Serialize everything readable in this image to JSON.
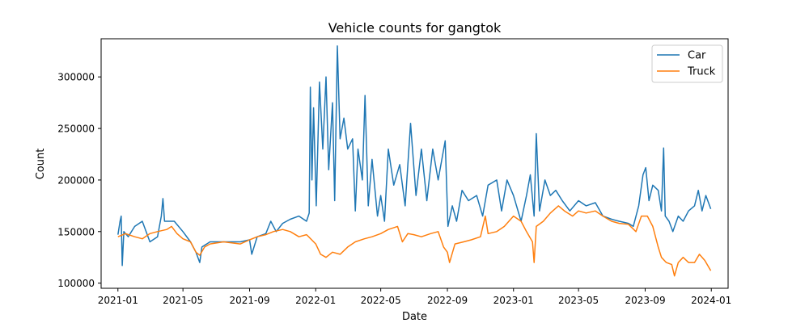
{
  "chart_data": {
    "type": "line",
    "title": "Vehicle counts for gangtok",
    "xlabel": "Date",
    "ylabel": "Count",
    "x_ticks": [
      "2021-01",
      "2021-05",
      "2021-09",
      "2022-01",
      "2022-05",
      "2022-09",
      "2023-01",
      "2023-05",
      "2023-09",
      "2024-01"
    ],
    "y_ticks": [
      100000,
      150000,
      200000,
      250000,
      300000
    ],
    "y_tick_labels": [
      "100000",
      "150000",
      "200000",
      "250000",
      "300000"
    ],
    "xlim": [
      "2020-12-01",
      "2024-02-01"
    ],
    "ylim": [
      95000,
      337000
    ],
    "grid": false,
    "legend_position": "top-right",
    "series": [
      {
        "name": "Car",
        "color": "#1f77b4",
        "points": [
          [
            "2021-01-01",
            147000
          ],
          [
            "2021-01-05",
            160000
          ],
          [
            "2021-01-07",
            165000
          ],
          [
            "2021-01-09",
            117000
          ],
          [
            "2021-01-12",
            150000
          ],
          [
            "2021-01-20",
            145000
          ],
          [
            "2021-02-01",
            155000
          ],
          [
            "2021-02-15",
            160000
          ],
          [
            "2021-03-01",
            140000
          ],
          [
            "2021-03-15",
            145000
          ],
          [
            "2021-03-22",
            165000
          ],
          [
            "2021-03-25",
            182000
          ],
          [
            "2021-03-28",
            160000
          ],
          [
            "2021-04-15",
            160000
          ],
          [
            "2021-05-01",
            150000
          ],
          [
            "2021-05-15",
            140000
          ],
          [
            "2021-05-25",
            130000
          ],
          [
            "2021-06-01",
            120000
          ],
          [
            "2021-06-05",
            135000
          ],
          [
            "2021-06-20",
            140000
          ],
          [
            "2021-07-15",
            140000
          ],
          [
            "2021-08-15",
            140000
          ],
          [
            "2021-09-01",
            142000
          ],
          [
            "2021-09-05",
            128000
          ],
          [
            "2021-09-15",
            145000
          ],
          [
            "2021-10-01",
            148000
          ],
          [
            "2021-10-10",
            160000
          ],
          [
            "2021-10-20",
            150000
          ],
          [
            "2021-11-01",
            158000
          ],
          [
            "2021-11-15",
            162000
          ],
          [
            "2021-12-01",
            165000
          ],
          [
            "2021-12-15",
            160000
          ],
          [
            "2021-12-20",
            168000
          ],
          [
            "2021-12-22",
            290000
          ],
          [
            "2021-12-25",
            200000
          ],
          [
            "2021-12-28",
            270000
          ],
          [
            "2022-01-02",
            175000
          ],
          [
            "2022-01-08",
            295000
          ],
          [
            "2022-01-14",
            230000
          ],
          [
            "2022-01-20",
            300000
          ],
          [
            "2022-01-25",
            210000
          ],
          [
            "2022-02-01",
            275000
          ],
          [
            "2022-02-05",
            180000
          ],
          [
            "2022-02-10",
            330000
          ],
          [
            "2022-02-15",
            240000
          ],
          [
            "2022-02-22",
            260000
          ],
          [
            "2022-03-01",
            230000
          ],
          [
            "2022-03-10",
            240000
          ],
          [
            "2022-03-15",
            170000
          ],
          [
            "2022-03-20",
            230000
          ],
          [
            "2022-03-28",
            200000
          ],
          [
            "2022-04-02",
            282000
          ],
          [
            "2022-04-08",
            175000
          ],
          [
            "2022-04-15",
            220000
          ],
          [
            "2022-04-25",
            165000
          ],
          [
            "2022-05-01",
            185000
          ],
          [
            "2022-05-08",
            160000
          ],
          [
            "2022-05-15",
            230000
          ],
          [
            "2022-05-25",
            195000
          ],
          [
            "2022-06-05",
            215000
          ],
          [
            "2022-06-15",
            175000
          ],
          [
            "2022-06-25",
            255000
          ],
          [
            "2022-07-05",
            185000
          ],
          [
            "2022-07-15",
            230000
          ],
          [
            "2022-07-25",
            180000
          ],
          [
            "2022-08-05",
            230000
          ],
          [
            "2022-08-15",
            200000
          ],
          [
            "2022-08-28",
            238000
          ],
          [
            "2022-09-02",
            155000
          ],
          [
            "2022-09-10",
            175000
          ],
          [
            "2022-09-18",
            160000
          ],
          [
            "2022-09-28",
            190000
          ],
          [
            "2022-10-10",
            180000
          ],
          [
            "2022-10-25",
            185000
          ],
          [
            "2022-11-05",
            165000
          ],
          [
            "2022-11-15",
            195000
          ],
          [
            "2022-12-01",
            200000
          ],
          [
            "2022-12-10",
            170000
          ],
          [
            "2022-12-20",
            200000
          ],
          [
            "2023-01-01",
            185000
          ],
          [
            "2023-01-15",
            160000
          ],
          [
            "2023-01-25",
            185000
          ],
          [
            "2023-02-01",
            205000
          ],
          [
            "2023-02-08",
            165000
          ],
          [
            "2023-02-12",
            245000
          ],
          [
            "2023-02-18",
            170000
          ],
          [
            "2023-02-28",
            200000
          ],
          [
            "2023-03-10",
            185000
          ],
          [
            "2023-03-20",
            190000
          ],
          [
            "2023-04-01",
            180000
          ],
          [
            "2023-04-15",
            170000
          ],
          [
            "2023-05-01",
            180000
          ],
          [
            "2023-05-15",
            175000
          ],
          [
            "2023-06-01",
            178000
          ],
          [
            "2023-06-15",
            165000
          ],
          [
            "2023-07-01",
            162000
          ],
          [
            "2023-07-15",
            160000
          ],
          [
            "2023-08-01",
            158000
          ],
          [
            "2023-08-10",
            155000
          ],
          [
            "2023-08-20",
            175000
          ],
          [
            "2023-08-28",
            205000
          ],
          [
            "2023-09-02",
            212000
          ],
          [
            "2023-09-08",
            180000
          ],
          [
            "2023-09-15",
            195000
          ],
          [
            "2023-09-25",
            190000
          ],
          [
            "2023-10-01",
            170000
          ],
          [
            "2023-10-05",
            231000
          ],
          [
            "2023-10-08",
            165000
          ],
          [
            "2023-10-15",
            160000
          ],
          [
            "2023-10-22",
            150000
          ],
          [
            "2023-11-01",
            165000
          ],
          [
            "2023-11-10",
            160000
          ],
          [
            "2023-11-20",
            170000
          ],
          [
            "2023-12-01",
            175000
          ],
          [
            "2023-12-08",
            190000
          ],
          [
            "2023-12-15",
            170000
          ],
          [
            "2023-12-22",
            185000
          ],
          [
            "2023-12-31",
            172000
          ]
        ]
      },
      {
        "name": "Truck",
        "color": "#ff7f0e",
        "points": [
          [
            "2021-01-01",
            145000
          ],
          [
            "2021-01-15",
            148000
          ],
          [
            "2021-02-01",
            145000
          ],
          [
            "2021-02-15",
            143000
          ],
          [
            "2021-03-01",
            148000
          ],
          [
            "2021-03-15",
            150000
          ],
          [
            "2021-04-01",
            152000
          ],
          [
            "2021-04-10",
            155000
          ],
          [
            "2021-04-20",
            148000
          ],
          [
            "2021-05-01",
            143000
          ],
          [
            "2021-05-15",
            140000
          ],
          [
            "2021-05-25",
            130000
          ],
          [
            "2021-06-01",
            127000
          ],
          [
            "2021-06-10",
            135000
          ],
          [
            "2021-06-20",
            138000
          ],
          [
            "2021-07-15",
            140000
          ],
          [
            "2021-08-15",
            138000
          ],
          [
            "2021-09-01",
            142000
          ],
          [
            "2021-09-15",
            145000
          ],
          [
            "2021-10-01",
            147000
          ],
          [
            "2021-10-15",
            150000
          ],
          [
            "2021-11-01",
            152000
          ],
          [
            "2021-11-15",
            150000
          ],
          [
            "2021-12-01",
            145000
          ],
          [
            "2021-12-15",
            147000
          ],
          [
            "2022-01-01",
            138000
          ],
          [
            "2022-01-10",
            128000
          ],
          [
            "2022-01-20",
            125000
          ],
          [
            "2022-02-01",
            130000
          ],
          [
            "2022-02-15",
            128000
          ],
          [
            "2022-03-01",
            135000
          ],
          [
            "2022-03-15",
            140000
          ],
          [
            "2022-04-01",
            143000
          ],
          [
            "2022-04-15",
            145000
          ],
          [
            "2022-05-01",
            148000
          ],
          [
            "2022-05-15",
            152000
          ],
          [
            "2022-06-01",
            155000
          ],
          [
            "2022-06-10",
            140000
          ],
          [
            "2022-06-20",
            148000
          ],
          [
            "2022-07-01",
            147000
          ],
          [
            "2022-07-15",
            145000
          ],
          [
            "2022-08-01",
            148000
          ],
          [
            "2022-08-15",
            150000
          ],
          [
            "2022-08-25",
            135000
          ],
          [
            "2022-09-01",
            130000
          ],
          [
            "2022-09-05",
            120000
          ],
          [
            "2022-09-15",
            138000
          ],
          [
            "2022-10-01",
            140000
          ],
          [
            "2022-10-15",
            142000
          ],
          [
            "2022-11-01",
            145000
          ],
          [
            "2022-11-10",
            165000
          ],
          [
            "2022-11-15",
            148000
          ],
          [
            "2022-12-01",
            150000
          ],
          [
            "2022-12-15",
            155000
          ],
          [
            "2023-01-01",
            165000
          ],
          [
            "2023-01-15",
            160000
          ],
          [
            "2023-01-25",
            150000
          ],
          [
            "2023-02-05",
            140000
          ],
          [
            "2023-02-08",
            120000
          ],
          [
            "2023-02-12",
            155000
          ],
          [
            "2023-02-25",
            160000
          ],
          [
            "2023-03-10",
            168000
          ],
          [
            "2023-03-25",
            175000
          ],
          [
            "2023-04-05",
            170000
          ],
          [
            "2023-04-20",
            165000
          ],
          [
            "2023-05-01",
            170000
          ],
          [
            "2023-05-15",
            168000
          ],
          [
            "2023-06-01",
            170000
          ],
          [
            "2023-06-15",
            165000
          ],
          [
            "2023-07-01",
            160000
          ],
          [
            "2023-07-15",
            158000
          ],
          [
            "2023-08-01",
            157000
          ],
          [
            "2023-08-15",
            150000
          ],
          [
            "2023-08-25",
            165000
          ],
          [
            "2023-09-05",
            165000
          ],
          [
            "2023-09-15",
            155000
          ],
          [
            "2023-09-25",
            135000
          ],
          [
            "2023-10-01",
            125000
          ],
          [
            "2023-10-10",
            120000
          ],
          [
            "2023-10-20",
            118000
          ],
          [
            "2023-10-25",
            107000
          ],
          [
            "2023-11-01",
            120000
          ],
          [
            "2023-11-10",
            125000
          ],
          [
            "2023-11-20",
            120000
          ],
          [
            "2023-12-01",
            120000
          ],
          [
            "2023-12-10",
            128000
          ],
          [
            "2023-12-20",
            122000
          ],
          [
            "2023-12-31",
            112000
          ]
        ]
      }
    ]
  }
}
